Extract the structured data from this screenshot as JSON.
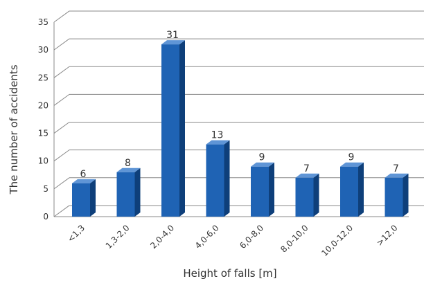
{
  "chart_data": {
    "type": "bar",
    "categories": [
      "<1,3",
      "1,3-2,0",
      "2,0-4,0",
      "4,0-6,0",
      "6,0-8,0",
      "8,0-10,0",
      "10,0-12,0",
      ">12,0"
    ],
    "values": [
      6,
      8,
      31,
      13,
      9,
      7,
      9,
      7
    ],
    "data_labels": [
      "6",
      "8",
      "31",
      "13",
      "9",
      "7",
      "9",
      "7"
    ],
    "xlabel": "Height of falls [m]",
    "ylabel": "The number of accidents",
    "ylim": [
      0,
      35
    ],
    "yticks": [
      0,
      5,
      10,
      15,
      20,
      25,
      30,
      35
    ],
    "ytick_labels": [
      "0",
      "5",
      "10",
      "15",
      "20",
      "25",
      "30",
      "35"
    ],
    "grid": true,
    "legend": "none",
    "style": "3d-bar",
    "colors": {
      "bar_front": "#1f63b4",
      "bar_side": "#0e3f7a",
      "bar_top": "#5f95d6",
      "grid": "#888888"
    }
  }
}
